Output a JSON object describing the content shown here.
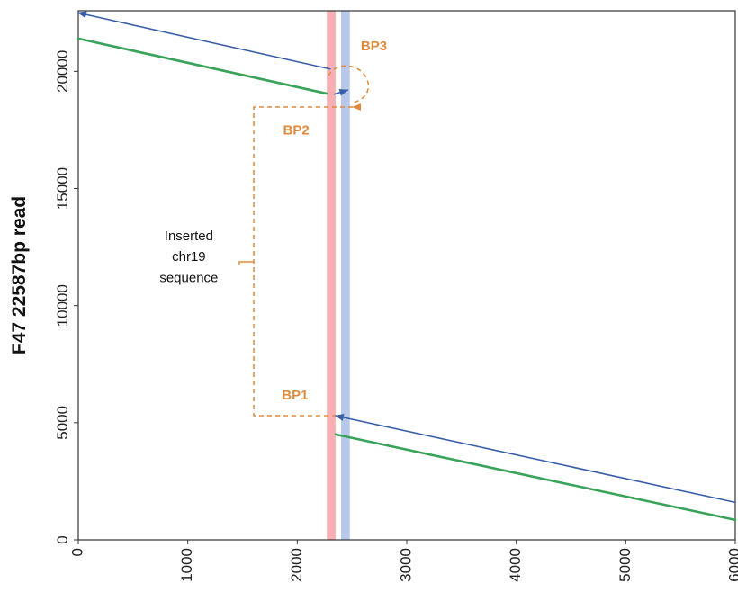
{
  "chart_data": {
    "type": "line",
    "title": "",
    "xlabel": "",
    "ylabel": "F47 22587bp read",
    "xlim": [
      0,
      6000
    ],
    "ylim": [
      0,
      22587
    ],
    "x_ticks": [
      0,
      1000,
      2000,
      3000,
      4000,
      5000,
      6000
    ],
    "y_ticks": [
      0,
      5000,
      10000,
      15000,
      20000
    ],
    "grid": false,
    "legend": "none",
    "series": [
      {
        "color": "#3a5fa8",
        "segments": [
          [
            [
              2300,
              20100
            ],
            [
              0,
              22500
            ]
          ],
          [
            [
              6000,
              1600
            ],
            [
              2350,
              5300
            ]
          ],
          [
            [
              2340,
              19030
            ],
            [
              2460,
              19200
            ]
          ]
        ]
      },
      {
        "color": "#3aa35a",
        "segments": [
          [
            [
              0,
              21400
            ],
            [
              2270,
              19050
            ]
          ],
          [
            [
              2350,
              4500
            ],
            [
              6000,
              850
            ]
          ]
        ]
      }
    ],
    "highlight_bands": [
      {
        "x_range": [
          2270,
          2350
        ],
        "color": "#f6b0b4"
      },
      {
        "x_range": [
          2400,
          2480
        ],
        "color": "#b8c8ea"
      }
    ],
    "annotations": {
      "color": "#e08a3c",
      "labels": [
        {
          "text": "BP1",
          "x": 1980,
          "y": 6000
        },
        {
          "text": "BP2",
          "x": 1990,
          "y": 17300
        },
        {
          "text": "BP3",
          "x": 2700,
          "y": 20900
        },
        {
          "text": "Inserted",
          "x": 1010,
          "y": 12800
        },
        {
          "text": "chr19",
          "x": 1010,
          "y": 11900
        },
        {
          "text": "sequence",
          "x": 1010,
          "y": 11000
        }
      ]
    }
  }
}
